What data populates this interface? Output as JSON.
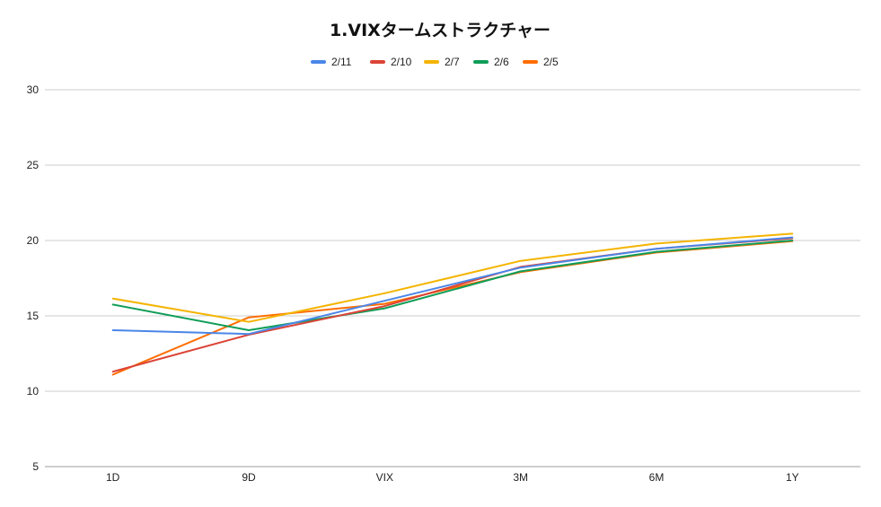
{
  "chart_data": {
    "type": "line",
    "title": "1.VIXタームストラクチャー",
    "xlabel": "",
    "ylabel": "",
    "categories": [
      "1D",
      "9D",
      "VIX",
      "3M",
      "6M",
      "1Y"
    ],
    "ylim": [
      5,
      30
    ],
    "yticks": [
      5,
      10,
      15,
      20,
      25,
      30
    ],
    "grid": true,
    "legend_position": "top",
    "series": [
      {
        "name": "2/11",
        "color": "#4a86e8",
        "values": [
          14.05,
          13.8,
          16.0,
          18.2,
          19.45,
          20.2
        ]
      },
      {
        "name": "2/10",
        "color": "#db4437",
        "values": [
          11.3,
          13.75,
          15.65,
          18.25,
          19.45,
          20.15
        ]
      },
      {
        "name": "2/7",
        "color": "#f4b400",
        "values": [
          16.15,
          14.6,
          16.5,
          18.65,
          19.8,
          20.45
        ]
      },
      {
        "name": "2/6",
        "color": "#0f9d58",
        "values": [
          15.75,
          14.05,
          15.5,
          17.95,
          19.25,
          20.0
        ]
      },
      {
        "name": "2/5",
        "color": "#ff6d01",
        "values": [
          11.1,
          14.9,
          15.8,
          17.9,
          19.2,
          19.95
        ]
      }
    ]
  }
}
